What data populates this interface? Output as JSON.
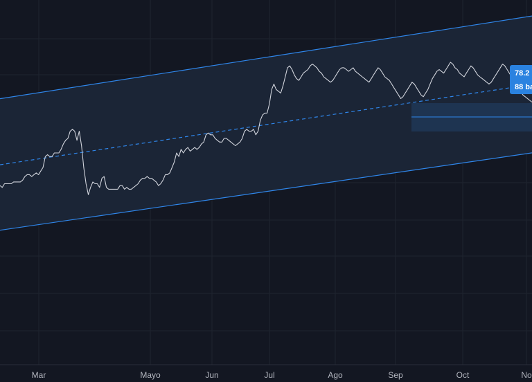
{
  "chart_data": {
    "type": "line",
    "x_tick_labels": [
      "Mar",
      "Mayo",
      "Jun",
      "Jul",
      "Ago",
      "Sep",
      "Oct",
      "No"
    ],
    "series": [
      {
        "values": [
          32,
          31,
          33,
          33,
          33,
          33,
          34,
          34,
          34,
          34,
          35,
          37,
          38,
          38,
          37,
          38,
          39,
          38,
          40,
          42,
          48,
          49,
          48,
          48,
          50,
          50,
          50,
          52,
          55,
          57,
          58,
          62,
          63,
          62,
          57,
          62,
          54,
          42,
          33,
          27,
          31,
          34,
          33,
          33,
          31,
          36,
          37,
          31,
          30,
          30,
          30,
          30,
          30,
          32,
          32,
          30,
          31,
          30,
          30,
          31,
          32,
          33,
          35,
          36,
          36,
          37,
          36,
          36,
          35,
          34,
          32,
          33,
          35,
          38,
          38,
          39,
          42,
          45,
          50,
          48,
          52,
          50,
          52,
          53,
          51,
          52,
          53,
          52,
          53,
          55,
          56,
          60,
          61,
          60,
          60,
          58,
          57,
          56,
          56,
          58,
          58,
          57,
          56,
          55,
          54,
          55,
          56,
          58,
          62,
          63,
          62,
          62,
          63,
          60,
          62,
          68,
          71,
          72,
          72,
          77,
          85,
          88,
          85,
          84,
          83,
          87,
          92,
          97,
          98,
          96,
          93,
          91,
          90,
          92,
          94,
          95,
          96,
          98,
          99,
          98,
          97,
          95,
          94,
          92,
          91,
          90,
          89,
          90,
          92,
          94,
          96,
          97,
          97,
          96,
          95,
          96,
          97,
          95,
          94,
          93,
          92,
          91,
          90,
          89,
          91,
          93,
          95,
          97,
          96,
          94,
          92,
          91,
          90,
          88,
          86,
          84,
          82,
          80,
          81,
          83,
          85,
          87,
          89,
          88,
          86,
          84,
          82,
          81,
          83,
          85,
          88,
          91,
          93,
          95,
          96,
          95,
          94,
          96,
          98,
          100,
          99,
          97,
          96,
          94,
          93,
          92,
          94,
          96,
          98,
          97,
          95,
          93,
          92,
          91,
          90,
          89,
          88,
          89,
          91,
          93,
          95,
          97,
          99,
          98,
          96,
          94,
          92,
          90,
          88,
          86,
          84,
          82,
          81,
          80,
          79,
          78
        ]
      }
    ],
    "channel": {
      "upper": {
        "start": 0.952,
        "end": 1.23
      },
      "middle": {
        "start": 0.73,
        "end": 1.0
      },
      "lower": {
        "start": 0.51,
        "end": 0.77
      }
    },
    "price_label": "78.2",
    "bars_label": "88 ba"
  },
  "colors": {
    "background": "#131722",
    "band": "#1b2536",
    "channel_line": "#2f86ea",
    "price_line": "#d1d4dc",
    "grid": "#1f2430",
    "axis_text": "#b2b5be",
    "bubble": "#2a82e0",
    "box_fill": "#1f3a5c",
    "box_line": "#2f86ea"
  }
}
